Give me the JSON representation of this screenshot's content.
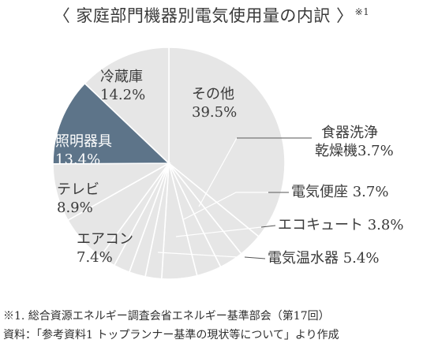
{
  "title": "〈 家庭部門機器別電気使用量の内訳 〉",
  "title_note": "※1",
  "chart_data": {
    "type": "pie",
    "title": "〈 家庭部門機器別電気使用量の内訳 〉",
    "start": "12 o'clock",
    "direction": "clockwise",
    "highlight_color": "#5d7489",
    "base_color": "#e6e6e6",
    "slice_border_color": "#ffffff",
    "slices": [
      {
        "label": "その他",
        "value_text": "39.5%",
        "value": 39.5
      },
      {
        "label": "食器洗浄乾燥機",
        "value_text": "3.7%",
        "value": 3.7
      },
      {
        "label": "電気便座",
        "value_text": "3.7%",
        "value": 3.7
      },
      {
        "label": "エコキュート",
        "value_text": "3.8%",
        "value": 3.8
      },
      {
        "label": "電気温水器",
        "value_text": "5.4%",
        "value": 5.4
      },
      {
        "label": "",
        "value_text": "",
        "value": 2.5
      },
      {
        "label": "",
        "value_text": "",
        "value": 2.5
      },
      {
        "label": "",
        "value_text": "",
        "value": 2.5
      },
      {
        "label": "",
        "value_text": "",
        "value": 2.5
      },
      {
        "label": "エアコン",
        "value_text": "7.4%",
        "value": 7.4
      },
      {
        "label": "テレビ",
        "value_text": "8.9%",
        "value": 8.9
      },
      {
        "label": "照明器具",
        "value_text": "13.4%",
        "value": 13.4,
        "highlight": true
      },
      {
        "label": "冷蔵庫",
        "value_text": "14.2%",
        "value": 14.2
      }
    ]
  },
  "labels": {
    "other": {
      "name": "その他",
      "pct": "39.5%"
    },
    "dishwasher": {
      "name_line1": "食器洗浄",
      "name_line2": "乾燥機3.7%"
    },
    "toilet_seat": "電気便座 3.7%",
    "ecocute": "エコキュート 3.8%",
    "water_heater": "電気温水器 5.4%",
    "aircon": {
      "name": "エアコン",
      "pct": "7.4%"
    },
    "tv": {
      "name": "テレビ",
      "pct": "8.9%"
    },
    "lighting": {
      "name": "照明器具",
      "pct": "13.4%"
    },
    "fridge": {
      "name": "冷蔵庫",
      "pct": "14.2%"
    }
  },
  "footnotes": {
    "line1": "※1. 総合資源エネルギー調査会省エネルギー基準部会（第17回）",
    "line2": "資料：「参考資料1 トップランナー基準の現状等について」より作成"
  }
}
